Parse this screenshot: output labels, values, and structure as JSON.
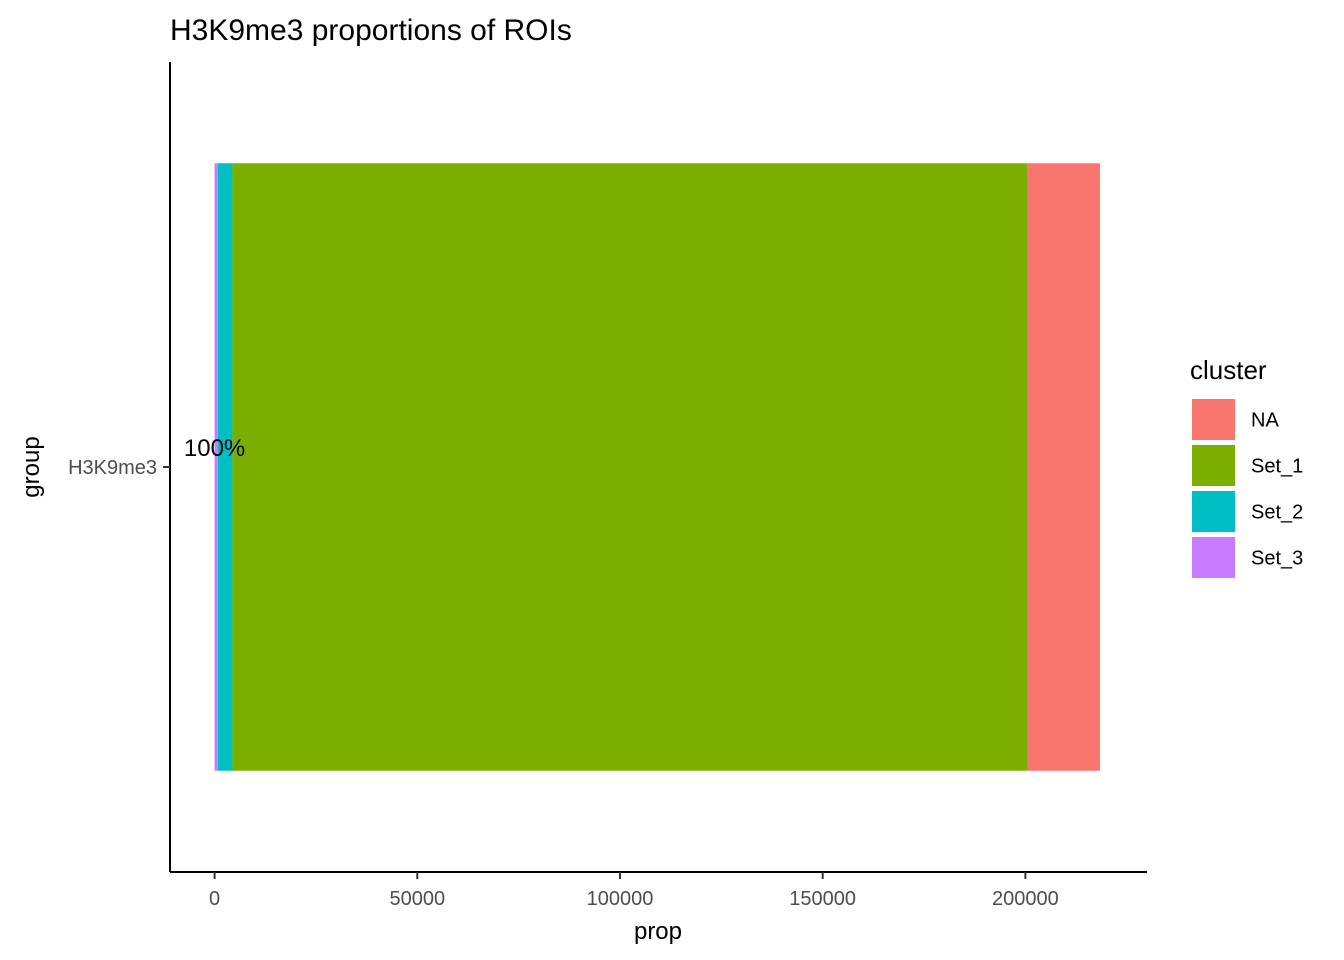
{
  "chart_data": {
    "type": "bar",
    "orientation": "horizontal",
    "stacked": true,
    "title": "H3K9me3 proportions of ROIs",
    "xlabel": "prop",
    "ylabel": "group",
    "categories": [
      "H3K9me3"
    ],
    "xlim": [
      -11000,
      230000
    ],
    "xticks": [
      0,
      50000,
      100000,
      150000,
      200000
    ],
    "grid": false,
    "legend": {
      "title": "cluster",
      "placement": "right"
    },
    "series": [
      {
        "name": "NA",
        "values": [
          18000
        ],
        "color": "#F8766D"
      },
      {
        "name": "Set_1",
        "values": [
          196000
        ],
        "color": "#7CAE00"
      },
      {
        "name": "Set_2",
        "values": [
          3600
        ],
        "color": "#00BFC4"
      },
      {
        "name": "Set_3",
        "values": [
          800
        ],
        "color": "#C77CFF"
      }
    ],
    "stack_order_from_zero": [
      "Set_3",
      "Set_2",
      "Set_1",
      "NA"
    ],
    "annotations": [
      {
        "text": "100%",
        "x": 0,
        "category": "H3K9me3"
      }
    ]
  }
}
